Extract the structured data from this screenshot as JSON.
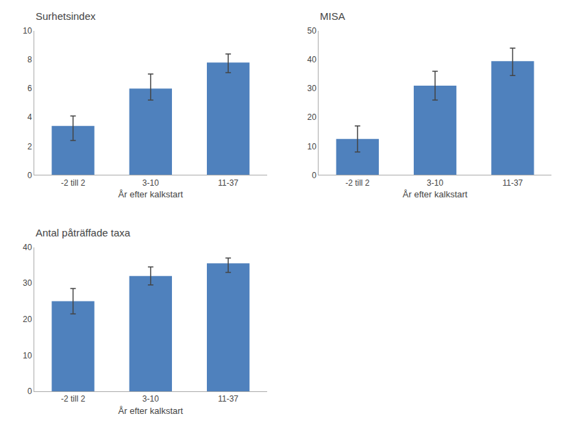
{
  "chart_data": [
    {
      "type": "bar",
      "title": "Surhetsindex",
      "xlabel": "År efter kalkstart",
      "categories": [
        "-2 till 2",
        "3-10",
        "11-37"
      ],
      "values": [
        3.4,
        6.0,
        7.8
      ],
      "errors_upper": [
        0.7,
        1.0,
        0.6
      ],
      "errors_lower": [
        1.0,
        0.8,
        0.7
      ],
      "color": "#4f81bd",
      "ylim": [
        0,
        10
      ],
      "yticks": [
        0,
        2,
        4,
        6,
        8,
        10
      ],
      "grid": false
    },
    {
      "type": "bar",
      "title": "MISA",
      "xlabel": "År efter kalkstart",
      "categories": [
        "-2 till 2",
        "3-10",
        "11-37"
      ],
      "values": [
        12.5,
        31.0,
        39.5
      ],
      "errors_upper": [
        4.5,
        5.0,
        4.5
      ],
      "errors_lower": [
        4.5,
        5.0,
        5.0
      ],
      "color": "#4f81bd",
      "ylim": [
        0,
        50
      ],
      "yticks": [
        0,
        10,
        20,
        30,
        40,
        50
      ],
      "grid": false
    },
    {
      "type": "bar",
      "title": "Antal påträffade taxa",
      "xlabel": "År efter kalkstart",
      "categories": [
        "-2 till 2",
        "3-10",
        "11-37"
      ],
      "values": [
        25.0,
        32.0,
        35.5
      ],
      "errors_upper": [
        3.5,
        2.5,
        1.5
      ],
      "errors_lower": [
        3.5,
        2.5,
        2.5
      ],
      "color": "#4f81bd",
      "ylim": [
        0,
        40
      ],
      "yticks": [
        0,
        10,
        20,
        30,
        40
      ],
      "grid": false
    }
  ]
}
